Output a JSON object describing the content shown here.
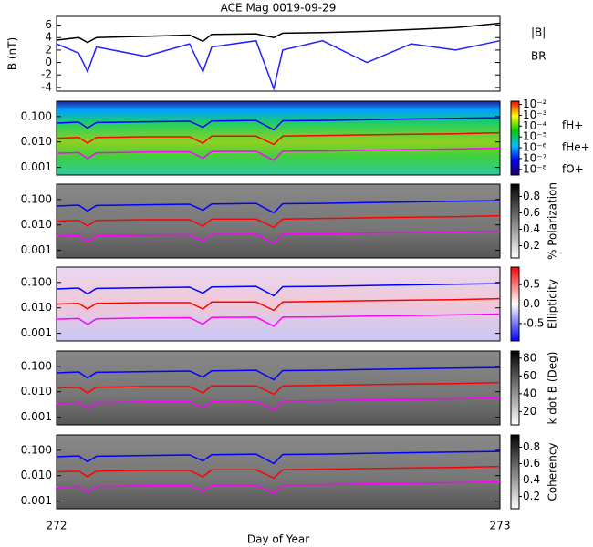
{
  "chart_data": [
    {
      "type": "line",
      "title": "ACE Mag 0019-09-29",
      "y_label": "B (nT)",
      "legend": true,
      "x": [
        272,
        272.05,
        272.07,
        272.09,
        272.2,
        272.3,
        272.33,
        272.35,
        272.45,
        272.49,
        272.51,
        272.6,
        272.7,
        272.8,
        272.9,
        273
      ],
      "xlim": [
        272,
        273
      ],
      "ylim": [
        -4.6,
        7.4
      ],
      "yticks": [
        -4,
        -2,
        0,
        2,
        4,
        6
      ],
      "series": [
        {
          "name": "|B|",
          "color": "#000000",
          "values": [
            3.6,
            4.0,
            3.2,
            4.0,
            4.2,
            4.4,
            3.4,
            4.5,
            4.6,
            4.0,
            4.7,
            4.8,
            5.0,
            5.3,
            5.6,
            6.3
          ]
        },
        {
          "name": "BR",
          "color": "#2020ff",
          "values": [
            3.0,
            1.5,
            -1.5,
            2.5,
            1.0,
            3.0,
            -1.5,
            2.5,
            3.5,
            -4.2,
            2.0,
            3.5,
            0.0,
            3.0,
            2.0,
            3.5
          ]
        }
      ]
    },
    {
      "type": "spectrogram",
      "colorscale": "rainbow",
      "y_log": true,
      "legend": true,
      "x": [
        272,
        272.05,
        272.07,
        272.09,
        272.2,
        272.3,
        272.33,
        272.35,
        272.45,
        272.49,
        272.51,
        272.6,
        272.7,
        272.8,
        272.9,
        273
      ],
      "xlim": [
        272,
        273
      ],
      "ylim": [
        0.0005,
        0.4
      ],
      "yticks": [
        {
          "value": 0.1,
          "label": "0.100"
        },
        {
          "value": 0.01,
          "label": "0.010"
        },
        {
          "value": 0.001,
          "label": "0.001"
        }
      ],
      "colorbar": {
        "log": true,
        "clim": [
          3e-09,
          0.02
        ],
        "ticks": [
          {
            "value": 0.01,
            "label": "10⁻²"
          },
          {
            "value": 0.001,
            "label": "10⁻³"
          },
          {
            "value": 0.0001,
            "label": "10⁻⁴"
          },
          {
            "value": 1e-05,
            "label": "10⁻⁵"
          },
          {
            "value": 1e-06,
            "label": "10⁻⁶"
          },
          {
            "value": 1e-07,
            "label": "10⁻⁷"
          },
          {
            "value": 1e-08,
            "label": "10⁻⁸"
          }
        ]
      },
      "series": [
        {
          "name": "fH+",
          "color": "#0000ff",
          "values": [
            0.055,
            0.06,
            0.035,
            0.058,
            0.062,
            0.065,
            0.038,
            0.066,
            0.07,
            0.03,
            0.068,
            0.07,
            0.075,
            0.08,
            0.085,
            0.09
          ]
        },
        {
          "name": "fHe+",
          "color": "#ff0000",
          "values": [
            0.014,
            0.015,
            0.009,
            0.015,
            0.016,
            0.016,
            0.009,
            0.017,
            0.017,
            0.008,
            0.017,
            0.018,
            0.019,
            0.02,
            0.021,
            0.023
          ]
        },
        {
          "name": "fO+",
          "color": "#ff00ff",
          "values": [
            0.0036,
            0.0038,
            0.0022,
            0.0037,
            0.004,
            0.0041,
            0.0023,
            0.0042,
            0.0043,
            0.0019,
            0.0043,
            0.0044,
            0.0047,
            0.005,
            0.0053,
            0.0057
          ]
        }
      ]
    },
    {
      "type": "spectrogram",
      "colorscale": "gray",
      "y_log": true,
      "x": [
        272,
        272.05,
        272.07,
        272.09,
        272.2,
        272.3,
        272.33,
        272.35,
        272.45,
        272.49,
        272.51,
        272.6,
        272.7,
        272.8,
        272.9,
        273
      ],
      "xlim": [
        272,
        273
      ],
      "ylim": [
        0.0005,
        0.4
      ],
      "yticks": [
        {
          "value": 0.1,
          "label": "0.100"
        },
        {
          "value": 0.01,
          "label": "0.010"
        },
        {
          "value": 0.001,
          "label": "0.001"
        }
      ],
      "colorbar": {
        "label": "% Polarization",
        "clim": [
          0.05,
          0.95
        ],
        "ticks": [
          0.2,
          0.4,
          0.6,
          0.8
        ]
      },
      "series": [
        {
          "color": "#0000ff",
          "values": [
            0.055,
            0.06,
            0.035,
            0.058,
            0.062,
            0.065,
            0.038,
            0.066,
            0.07,
            0.03,
            0.068,
            0.07,
            0.075,
            0.08,
            0.085,
            0.09
          ]
        },
        {
          "color": "#ff0000",
          "values": [
            0.014,
            0.015,
            0.009,
            0.015,
            0.016,
            0.016,
            0.009,
            0.017,
            0.017,
            0.008,
            0.017,
            0.018,
            0.019,
            0.02,
            0.021,
            0.023
          ]
        },
        {
          "color": "#ff00ff",
          "values": [
            0.0036,
            0.0038,
            0.0022,
            0.0037,
            0.004,
            0.0041,
            0.0023,
            0.0042,
            0.0043,
            0.0019,
            0.0043,
            0.0044,
            0.0047,
            0.005,
            0.0053,
            0.0057
          ]
        }
      ]
    },
    {
      "type": "spectrogram",
      "colorscale": "bwr",
      "y_log": true,
      "x": [
        272,
        272.05,
        272.07,
        272.09,
        272.2,
        272.3,
        272.33,
        272.35,
        272.45,
        272.49,
        272.51,
        272.6,
        272.7,
        272.8,
        272.9,
        273
      ],
      "xlim": [
        272,
        273
      ],
      "ylim": [
        0.0005,
        0.4
      ],
      "yticks": [
        {
          "value": 0.1,
          "label": "0.100"
        },
        {
          "value": 0.01,
          "label": "0.010"
        },
        {
          "value": 0.001,
          "label": "0.001"
        }
      ],
      "colorbar": {
        "label": "Ellipticity",
        "clim": [
          -0.95,
          0.95
        ],
        "ticks": [
          {
            "value": 0.5,
            "label": "0.5"
          },
          {
            "value": 0,
            "label": "0.0"
          },
          {
            "value": -0.5,
            "label": "-0.5"
          }
        ]
      },
      "series": [
        {
          "color": "#0000ff",
          "values": [
            0.055,
            0.06,
            0.035,
            0.058,
            0.062,
            0.065,
            0.038,
            0.066,
            0.07,
            0.03,
            0.068,
            0.07,
            0.075,
            0.08,
            0.085,
            0.09
          ]
        },
        {
          "color": "#ff0000",
          "values": [
            0.014,
            0.015,
            0.009,
            0.015,
            0.016,
            0.016,
            0.009,
            0.017,
            0.017,
            0.008,
            0.017,
            0.018,
            0.019,
            0.02,
            0.021,
            0.023
          ]
        },
        {
          "color": "#ff00ff",
          "values": [
            0.0036,
            0.0038,
            0.0022,
            0.0037,
            0.004,
            0.0041,
            0.0023,
            0.0042,
            0.0043,
            0.0019,
            0.0043,
            0.0044,
            0.0047,
            0.005,
            0.0053,
            0.0057
          ]
        }
      ]
    },
    {
      "type": "spectrogram",
      "colorscale": "gray",
      "y_log": true,
      "x": [
        272,
        272.05,
        272.07,
        272.09,
        272.2,
        272.3,
        272.33,
        272.35,
        272.45,
        272.49,
        272.51,
        272.6,
        272.7,
        272.8,
        272.9,
        273
      ],
      "xlim": [
        272,
        273
      ],
      "ylim": [
        0.0005,
        0.4
      ],
      "yticks": [
        {
          "value": 0.1,
          "label": "0.100"
        },
        {
          "value": 0.01,
          "label": "0.010"
        },
        {
          "value": 0.001,
          "label": "0.001"
        }
      ],
      "colorbar": {
        "label": "k dot B (Deg)",
        "clim": [
          5,
          88
        ],
        "ticks": [
          20,
          40,
          60,
          80
        ]
      },
      "series": [
        {
          "color": "#0000ff",
          "values": [
            0.055,
            0.06,
            0.035,
            0.058,
            0.062,
            0.065,
            0.038,
            0.066,
            0.07,
            0.03,
            0.068,
            0.07,
            0.075,
            0.08,
            0.085,
            0.09
          ]
        },
        {
          "color": "#ff0000",
          "values": [
            0.014,
            0.015,
            0.009,
            0.015,
            0.016,
            0.016,
            0.009,
            0.017,
            0.017,
            0.008,
            0.017,
            0.018,
            0.019,
            0.02,
            0.021,
            0.023
          ]
        },
        {
          "color": "#ff00ff",
          "values": [
            0.0036,
            0.0038,
            0.0022,
            0.0037,
            0.004,
            0.0041,
            0.0023,
            0.0042,
            0.0043,
            0.0019,
            0.0043,
            0.0044,
            0.0047,
            0.005,
            0.0053,
            0.0057
          ]
        }
      ]
    },
    {
      "type": "spectrogram",
      "colorscale": "gray",
      "y_log": true,
      "x_label": "Day of Year",
      "xticks": [
        272,
        273
      ],
      "x": [
        272,
        272.05,
        272.07,
        272.09,
        272.2,
        272.3,
        272.33,
        272.35,
        272.45,
        272.49,
        272.51,
        272.6,
        272.7,
        272.8,
        272.9,
        273
      ],
      "xlim": [
        272,
        273
      ],
      "ylim": [
        0.0005,
        0.4
      ],
      "yticks": [
        {
          "value": 0.1,
          "label": "0.100"
        },
        {
          "value": 0.01,
          "label": "0.010"
        },
        {
          "value": 0.001,
          "label": "0.001"
        }
      ],
      "colorbar": {
        "label": "Coherency",
        "clim": [
          0.05,
          0.95
        ],
        "ticks": [
          0.2,
          0.4,
          0.6,
          0.8
        ]
      },
      "series": [
        {
          "color": "#0000ff",
          "values": [
            0.055,
            0.06,
            0.035,
            0.058,
            0.062,
            0.065,
            0.038,
            0.066,
            0.07,
            0.03,
            0.068,
            0.07,
            0.075,
            0.08,
            0.085,
            0.09
          ]
        },
        {
          "color": "#ff0000",
          "values": [
            0.014,
            0.015,
            0.009,
            0.015,
            0.016,
            0.016,
            0.009,
            0.017,
            0.017,
            0.008,
            0.017,
            0.018,
            0.019,
            0.02,
            0.021,
            0.023
          ]
        },
        {
          "color": "#ff00ff",
          "values": [
            0.0036,
            0.0038,
            0.0022,
            0.0037,
            0.004,
            0.0041,
            0.0023,
            0.0042,
            0.0043,
            0.0019,
            0.0043,
            0.0044,
            0.0047,
            0.005,
            0.0053,
            0.0057
          ]
        }
      ]
    }
  ]
}
